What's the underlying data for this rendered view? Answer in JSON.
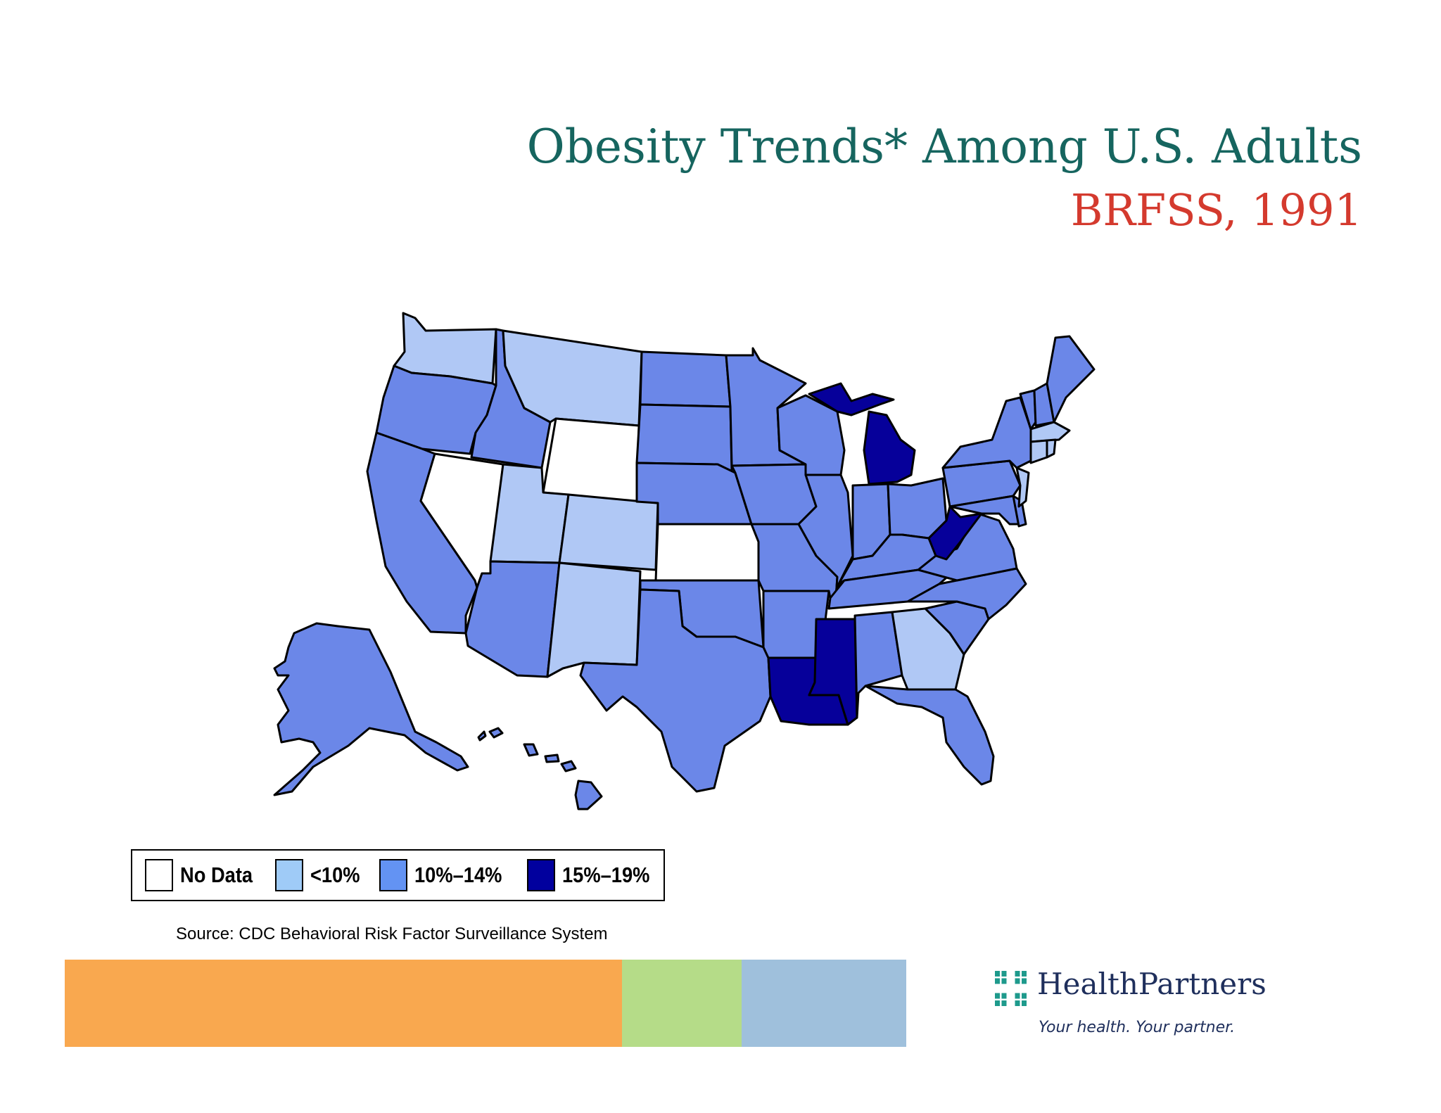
{
  "header": {
    "title": "Obesity Trends* Among U.S. Adults",
    "subtitle": "BRFSS, 1991"
  },
  "legend": {
    "items": [
      {
        "label": "No Data",
        "color": "#ffffff"
      },
      {
        "label": "<10%",
        "color": "#9fcbf7"
      },
      {
        "label": "10%–14%",
        "color": "#6393f3"
      },
      {
        "label": "15%–19%",
        "color": "#01009e"
      }
    ]
  },
  "map_colors": {
    "no_data": "#ffffff",
    "lt10": "#b0c8f5",
    "r10_14": "#6b87e8",
    "r15_19": "#06009a"
  },
  "states": {
    "no_data": [
      "NV",
      "WY",
      "KS"
    ],
    "lt10": [
      "WA",
      "MT",
      "UT",
      "CO",
      "NM",
      "GA",
      "NJ",
      "MA",
      "CT",
      "RI"
    ],
    "r10_14": [
      "OR",
      "CA",
      "ID",
      "AZ",
      "ND",
      "SD",
      "NE",
      "OK",
      "TX",
      "MN",
      "IA",
      "MO",
      "AR",
      "WI",
      "IL",
      "IN",
      "OH",
      "KY",
      "TN",
      "AL",
      "FL",
      "SC",
      "NC",
      "VA",
      "MD",
      "DE",
      "PA",
      "NY",
      "VT",
      "NH",
      "ME",
      "AK",
      "HI"
    ],
    "r15_19": [
      "MI",
      "WV",
      "MS",
      "LA"
    ]
  },
  "source": "Source: CDC Behavioral Risk Factor Surveillance  System",
  "footer_bars": [
    {
      "color": "#f9a84f"
    },
    {
      "color": "#b5dc88"
    },
    {
      "color": "#9fc0dc"
    }
  ],
  "logo": {
    "name": "HealthPartners",
    "tagline": "Your health. Your partner.",
    "color": "#1f2f5c",
    "mark_color": "#1e9a8c"
  }
}
